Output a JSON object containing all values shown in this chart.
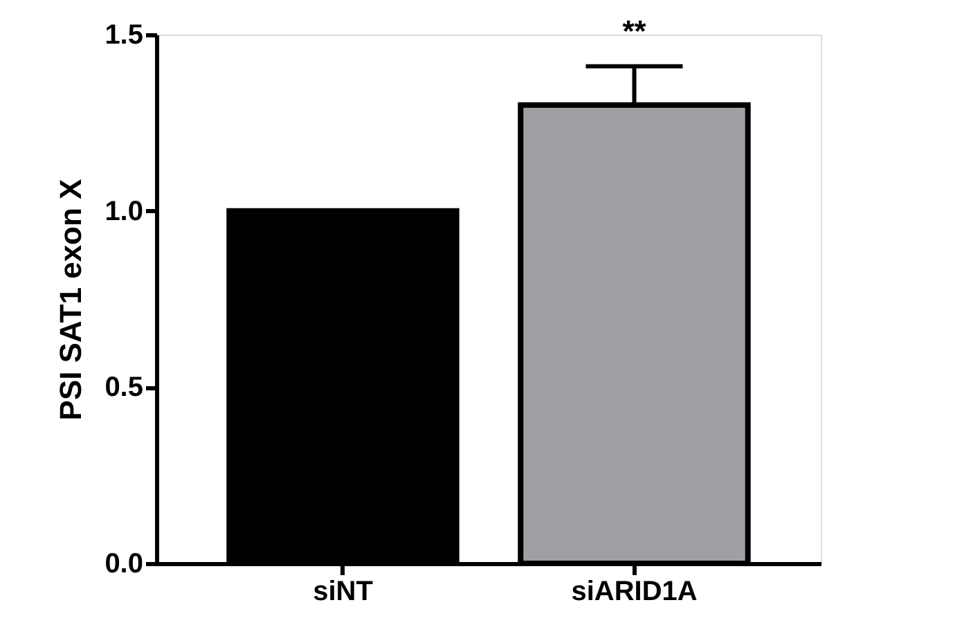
{
  "chart_data": {
    "type": "bar",
    "ylabel": "PSI SAT1 exon X",
    "categories": [
      "siNT",
      "siARID1A"
    ],
    "values": [
      1.0,
      1.3
    ],
    "colors": [
      "#000000",
      "#a0a0a4"
    ],
    "errors": [
      null,
      [
        1.3,
        1.41
      ]
    ],
    "ylim": [
      0,
      1.5
    ],
    "yticks": [
      {
        "value": 0,
        "label": "0.0"
      },
      {
        "value": 0.5,
        "label": "0.5"
      },
      {
        "value": 1.0,
        "label": "1.0"
      },
      {
        "value": 1.5,
        "label": "1.5"
      }
    ],
    "annotations": [
      "**"
    ],
    "grid": false
  }
}
